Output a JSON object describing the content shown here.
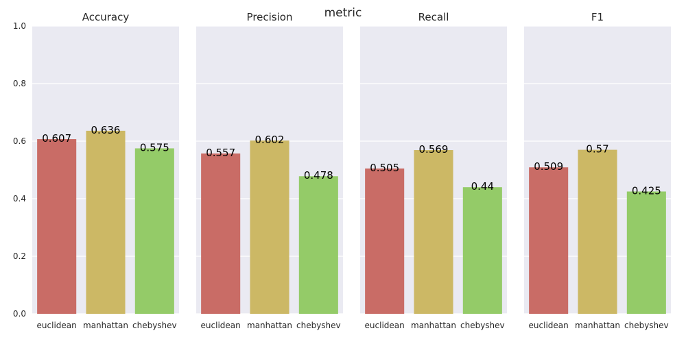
{
  "chart_data": {
    "type": "bar",
    "suptitle": "metric",
    "categories": [
      "euclidean",
      "manhattan",
      "chebyshev"
    ],
    "colors": [
      "#c96c66",
      "#ccb865",
      "#94cb68"
    ],
    "ylim": [
      0,
      1.0
    ],
    "yticks": [
      "0.0",
      "0.2",
      "0.4",
      "0.6",
      "0.8",
      "1.0"
    ],
    "grid": true,
    "panels": [
      {
        "title": "Accuracy",
        "values": [
          0.607,
          0.636,
          0.575
        ],
        "labels": [
          "0.607",
          "0.636",
          "0.575"
        ]
      },
      {
        "title": "Precision",
        "values": [
          0.557,
          0.602,
          0.478
        ],
        "labels": [
          "0.557",
          "0.602",
          "0.478"
        ]
      },
      {
        "title": "Recall",
        "values": [
          0.505,
          0.569,
          0.44
        ],
        "labels": [
          "0.505",
          "0.569",
          "0.44"
        ]
      },
      {
        "title": "F1",
        "values": [
          0.509,
          0.57,
          0.425
        ],
        "labels": [
          "0.509",
          "0.57",
          "0.425"
        ]
      }
    ]
  }
}
